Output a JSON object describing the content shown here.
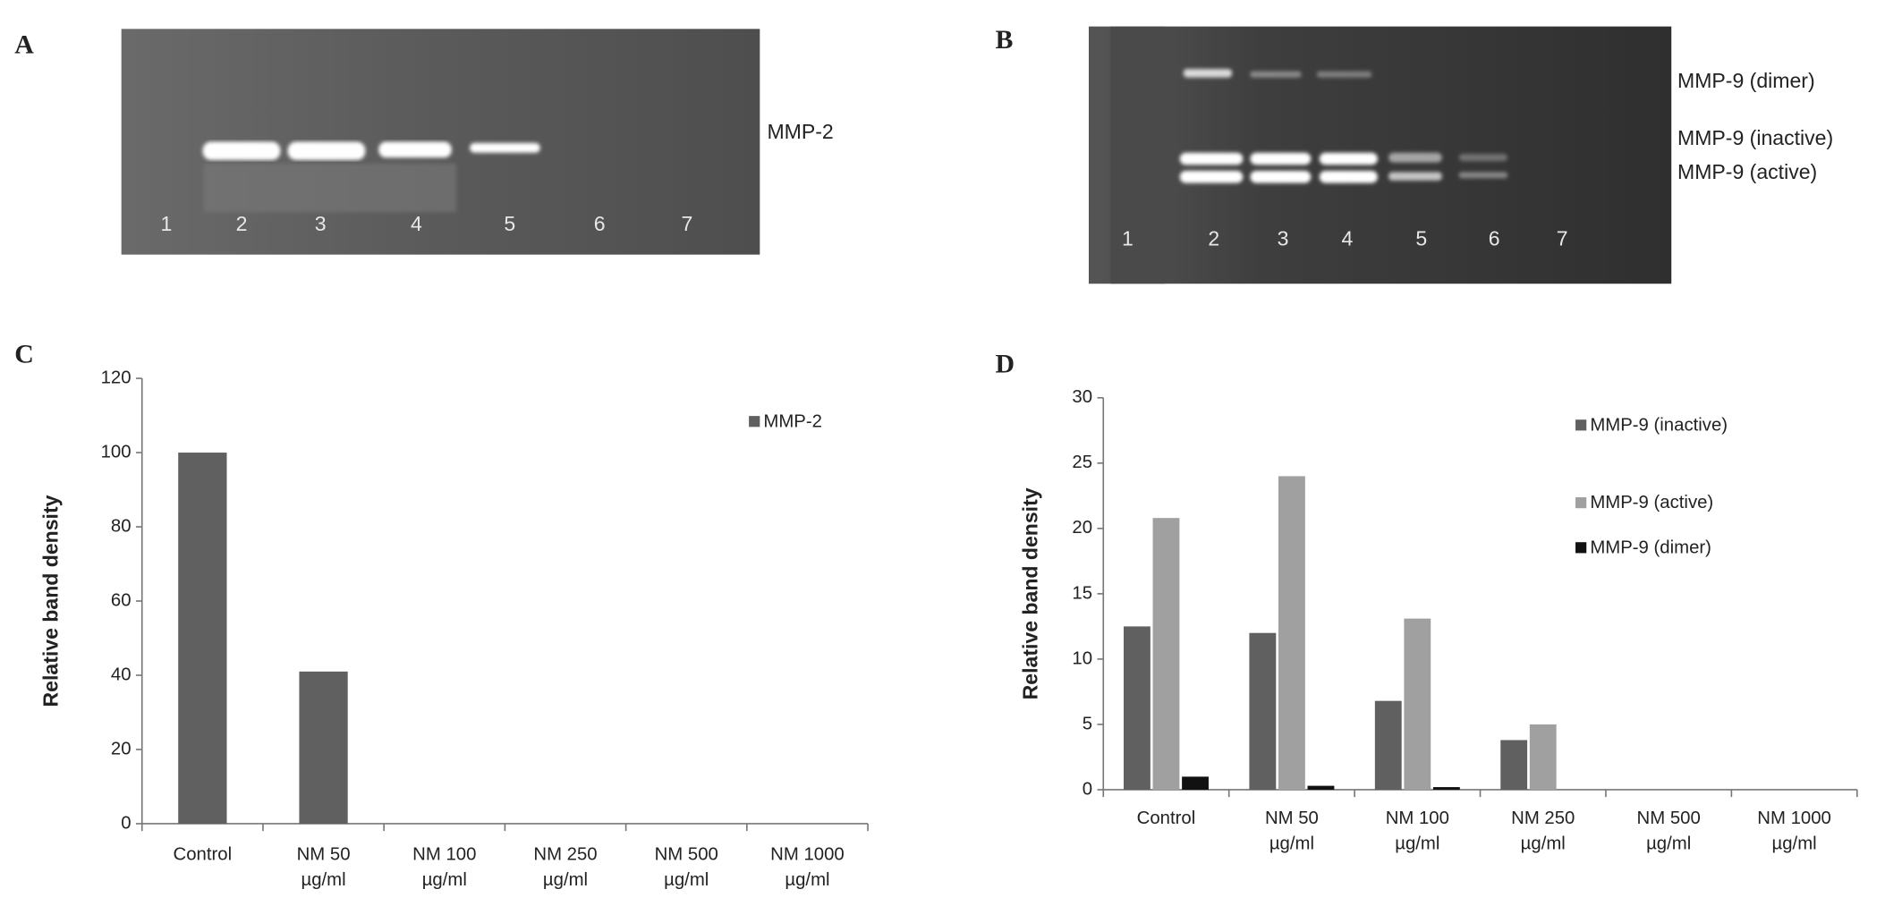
{
  "gels": [
    {
      "panel_label": "A",
      "lanes": [
        "1",
        "2",
        "3",
        "4",
        "5",
        "6",
        "7"
      ],
      "band_labels": [
        "MMP-2"
      ]
    },
    {
      "panel_label": "B",
      "lanes": [
        "1",
        "2",
        "3",
        "4",
        "5",
        "6",
        "7"
      ],
      "band_labels": [
        "MMP-9 (dimer)",
        "MMP-9 (inactive)",
        "MMP-9 (active)"
      ]
    }
  ],
  "chart_data": [
    {
      "type": "bar",
      "panel_label": "C",
      "y_label": "Relative band density",
      "categories": [
        [
          "Control"
        ],
        [
          "NM 50",
          "µg/ml"
        ],
        [
          "NM 100",
          "µg/ml"
        ],
        [
          "NM 250",
          "µg/ml"
        ],
        [
          "NM 500",
          "µg/ml"
        ],
        [
          "NM 1000",
          "µg/ml"
        ]
      ],
      "series": [
        {
          "name": "MMP-2",
          "color": "#606060",
          "values": [
            100,
            41,
            0,
            0,
            0,
            0
          ]
        }
      ],
      "ylim": [
        0,
        120
      ],
      "yticks": [
        0,
        20,
        40,
        60,
        80,
        100,
        120
      ],
      "legend": "upper-right"
    },
    {
      "type": "bar",
      "panel_label": "D",
      "y_label": "Relative band density",
      "categories": [
        [
          "Control"
        ],
        [
          "NM 50",
          "µg/ml"
        ],
        [
          "NM 100",
          "µg/ml"
        ],
        [
          "NM 250",
          "µg/ml"
        ],
        [
          "NM 500",
          "µg/ml"
        ],
        [
          "NM 1000",
          "µg/ml"
        ]
      ],
      "series": [
        {
          "name": "MMP-9 (inactive)",
          "color": "#606060",
          "values": [
            12.5,
            12,
            6.8,
            3.8,
            0,
            0
          ]
        },
        {
          "name": "MMP-9 (active)",
          "color": "#a0a0a0",
          "values": [
            20.8,
            24,
            13.1,
            5,
            0,
            0
          ]
        },
        {
          "name": "MMP-9 (dimer)",
          "color": "#111111",
          "values": [
            1,
            0.3,
            0.2,
            0,
            0,
            0
          ]
        }
      ],
      "ylim": [
        0,
        30
      ],
      "yticks": [
        0,
        5,
        10,
        15,
        20,
        25,
        30
      ],
      "legend": "upper-right"
    }
  ]
}
